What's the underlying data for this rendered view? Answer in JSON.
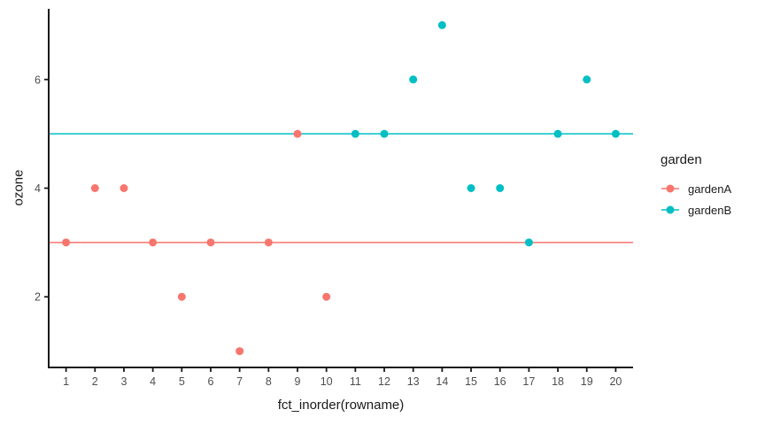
{
  "chart_data": {
    "type": "scatter",
    "title": "",
    "xlabel": "fct_inorder(rowname)",
    "ylabel": "ozone",
    "x_ticks": [
      "1",
      "2",
      "3",
      "4",
      "5",
      "6",
      "7",
      "8",
      "9",
      "10",
      "11",
      "12",
      "13",
      "14",
      "15",
      "16",
      "17",
      "18",
      "19",
      "20"
    ],
    "y_ticks": [
      "2",
      "4",
      "6"
    ],
    "ylim": [
      0.7,
      7.3
    ],
    "grid": "off",
    "axis_color": "#1a1a1a",
    "tick_text_color": "#4d4d4d",
    "legend": {
      "title": "garden",
      "position": "right"
    },
    "series": [
      {
        "name": "gardenA",
        "color": "#F8766D",
        "x": [
          1,
          2,
          3,
          4,
          5,
          6,
          7,
          8,
          9,
          10
        ],
        "y": [
          3,
          4,
          4,
          3,
          2,
          3,
          1,
          3,
          5,
          2
        ],
        "mean_line": 3
      },
      {
        "name": "gardenB",
        "color": "#00BFC4",
        "x": [
          11,
          12,
          13,
          14,
          15,
          16,
          17,
          18,
          19,
          20
        ],
        "y": [
          5,
          5,
          6,
          7,
          4,
          4,
          3,
          5,
          6,
          5
        ],
        "mean_line": 5
      }
    ]
  }
}
